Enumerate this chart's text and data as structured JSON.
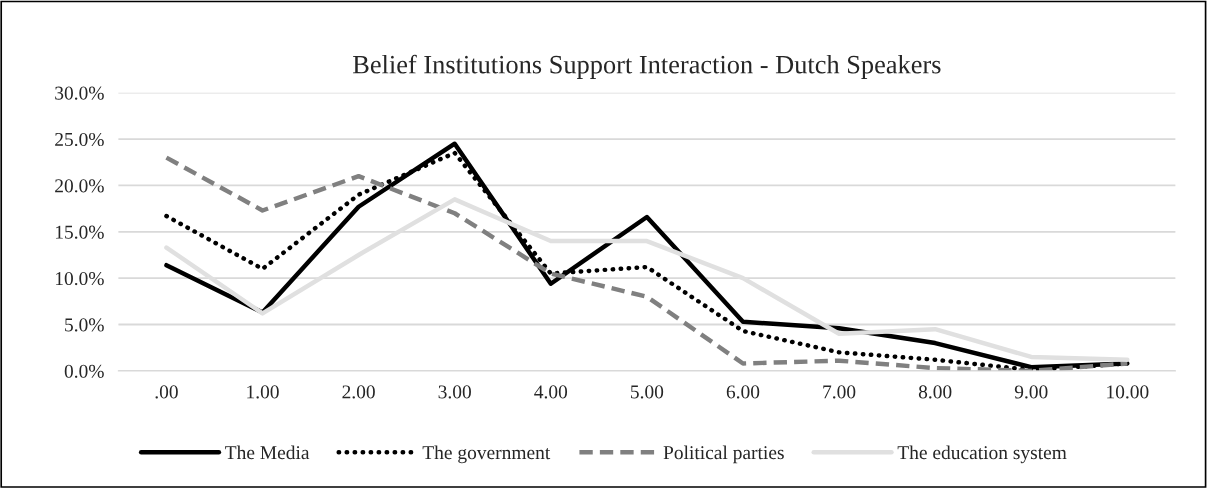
{
  "chart_data": {
    "type": "line",
    "title": "Belief Institutions Support Interaction - Dutch Speakers",
    "categories": [
      ".00",
      "1.00",
      "2.00",
      "3.00",
      "4.00",
      "5.00",
      "6.00",
      "7.00",
      "8.00",
      "9.00",
      "10.00"
    ],
    "series": [
      {
        "name": "The Media",
        "color": "#000000",
        "line_style": "solid",
        "values": [
          11.4,
          6.3,
          17.7,
          24.5,
          9.4,
          16.6,
          5.3,
          4.6,
          3.0,
          0.4,
          0.8
        ]
      },
      {
        "name": "The government",
        "color": "#000000",
        "line_style": "dotted",
        "values": [
          16.7,
          11.0,
          19.0,
          23.5,
          10.5,
          11.2,
          4.3,
          2.0,
          1.2,
          0.1,
          0.8
        ]
      },
      {
        "name": "Political parties",
        "color": "#808080",
        "line_style": "dashed",
        "values": [
          23.0,
          17.3,
          21.0,
          17.0,
          10.5,
          8.0,
          0.8,
          1.1,
          0.3,
          0.0,
          0.8
        ]
      },
      {
        "name": "The education system",
        "color": "#e0e0e0",
        "line_style": "solid",
        "values": [
          13.3,
          6.2,
          12.5,
          18.5,
          14.0,
          14.0,
          10.0,
          4.0,
          4.5,
          1.5,
          1.2
        ]
      }
    ],
    "ylim": [
      0,
      30
    ],
    "yticks": [
      {
        "value": 0,
        "label": "0.0%"
      },
      {
        "value": 5,
        "label": "5.0%"
      },
      {
        "value": 10,
        "label": "10.0%"
      },
      {
        "value": 15,
        "label": "15.0%"
      },
      {
        "value": 20,
        "label": "20.0%"
      },
      {
        "value": 25,
        "label": "25.0%"
      },
      {
        "value": 30,
        "label": "30.0%"
      }
    ],
    "grid": "y",
    "legend": "bottom",
    "marker": "none"
  }
}
